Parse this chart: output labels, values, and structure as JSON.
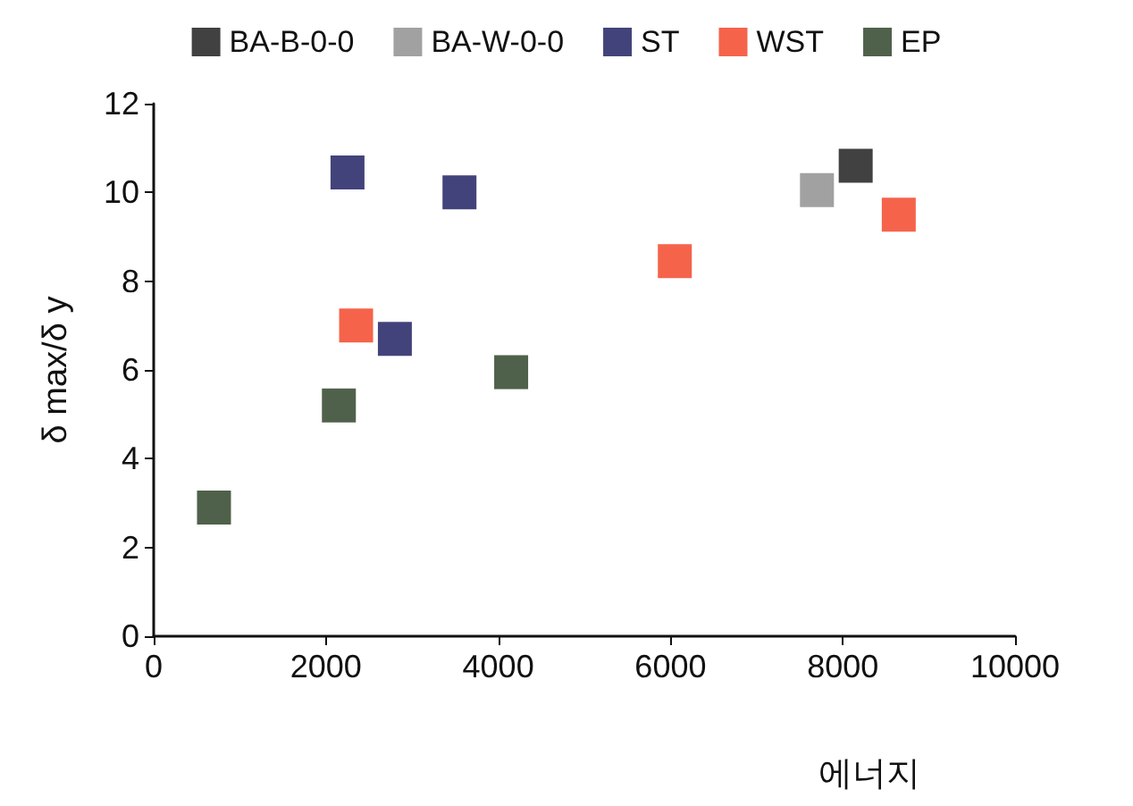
{
  "chart_data": {
    "type": "scatter",
    "xlabel": "에너지",
    "ylabel": "δ max/δ y",
    "xlim": [
      0,
      10000
    ],
    "xticks": [
      0,
      2000,
      4000,
      6000,
      8000,
      10000
    ],
    "ylim": [
      0,
      12
    ],
    "yticks": [
      0,
      2,
      4,
      6,
      8,
      10,
      12
    ],
    "grid": false,
    "legend": "top",
    "marker": "square",
    "series": [
      {
        "name": "BA-B-0-0",
        "color": "#111111",
        "x": [
          8150
        ],
        "values": [
          10.6
        ]
      },
      {
        "name": "BA-W-0-0",
        "color": "#8a8a8a",
        "x": [
          7700
        ],
        "values": [
          10.05
        ]
      },
      {
        "name": "ST",
        "color": "#14145a",
        "x": [
          2250,
          3550,
          2800
        ],
        "values": [
          10.45,
          10.0,
          6.7
        ]
      },
      {
        "name": "WST",
        "color": "#f23c1e",
        "x": [
          2350,
          6050,
          8650
        ],
        "values": [
          7.0,
          8.45,
          9.5
        ]
      },
      {
        "name": "EP",
        "color": "#243a1e",
        "x": [
          700,
          2150,
          4150
        ],
        "values": [
          2.9,
          5.2,
          5.95
        ]
      }
    ]
  }
}
